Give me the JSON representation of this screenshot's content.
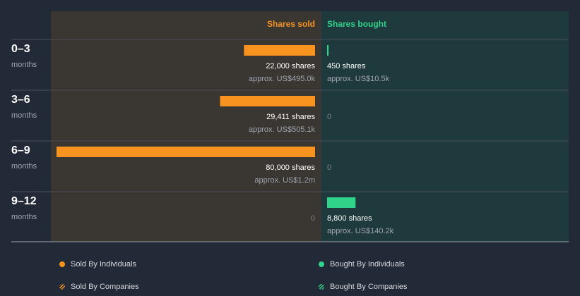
{
  "chart_data": {
    "type": "diverging-bar",
    "categories": [
      "0–3",
      "3–6",
      "6–9",
      "9–12"
    ],
    "category_unit": "months",
    "xlim": [
      0,
      80000
    ],
    "series": [
      {
        "name": "Shares sold",
        "color": "#f7931e",
        "side": "left",
        "values": [
          22000,
          29411,
          80000,
          0
        ],
        "value_labels": [
          "22,000 shares",
          "29,411 shares",
          "80,000 shares",
          "0"
        ],
        "amount_labels": [
          "approx. US$495.0k",
          "approx. US$505.1k",
          "approx. US$1.2m",
          null
        ]
      },
      {
        "name": "Shares bought",
        "color": "#2fd48a",
        "side": "right",
        "values": [
          450,
          0,
          0,
          8800
        ],
        "value_labels": [
          "450 shares",
          "0",
          "0",
          "8,800 shares"
        ],
        "amount_labels": [
          "approx. US$10.5k",
          null,
          null,
          "approx. US$140.2k"
        ]
      }
    ],
    "legend": [
      {
        "name": "Sold By Individuals",
        "color": "#f7931e",
        "style": "dot"
      },
      {
        "name": "Sold By Companies",
        "color": "#f7931e",
        "style": "hatch"
      },
      {
        "name": "Bought By Individuals",
        "color": "#2fd48a",
        "style": "dot"
      },
      {
        "name": "Bought By Companies",
        "color": "#2fd48a",
        "style": "hatch"
      }
    ]
  }
}
